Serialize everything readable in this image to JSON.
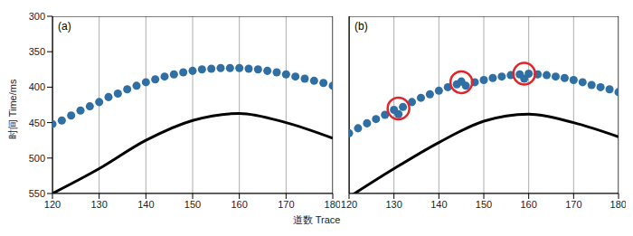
{
  "chart_data": [
    {
      "type": "scatter",
      "title": "(a)",
      "y_label": "时间 Time/ms",
      "x_label": "道数 Trace",
      "xlim": [
        120,
        180
      ],
      "xticks": [
        120,
        130,
        140,
        150,
        160,
        170,
        180
      ],
      "ylim": [
        300,
        550
      ],
      "yticks": [
        300,
        350,
        400,
        450,
        500,
        550
      ],
      "grid": true,
      "tick_labels": true,
      "picks": {
        "color": "#2f6fa3",
        "marker": "circle",
        "x": [
          120,
          122,
          124,
          126,
          128,
          130,
          132,
          134,
          136,
          138,
          140,
          142,
          144,
          146,
          148,
          150,
          152,
          154,
          156,
          158,
          160,
          162,
          164,
          166,
          168,
          170,
          172,
          174,
          176,
          178,
          180
        ],
        "values": [
          452,
          447,
          440,
          433,
          427,
          421,
          414,
          409,
          403,
          398,
          393,
          389,
          385,
          382,
          379,
          377,
          375,
          374,
          373,
          373,
          373,
          374,
          375,
          377,
          379,
          382,
          385,
          388,
          391,
          394,
          398
        ]
      },
      "event": {
        "color": "#000000",
        "line_style": "solid",
        "x": [
          120,
          130,
          140,
          150,
          160,
          170,
          180
        ],
        "values": [
          550,
          515,
          475,
          447,
          437,
          450,
          472
        ]
      }
    },
    {
      "type": "scatter",
      "title": "(b)",
      "xlim": [
        120,
        180
      ],
      "xticks": [
        120,
        130,
        140,
        150,
        160,
        170,
        180
      ],
      "ylim": [
        300,
        550
      ],
      "yticks": [
        300,
        350,
        400,
        450,
        500,
        550
      ],
      "grid": true,
      "tick_labels": "x",
      "picks": {
        "color": "#2f6fa3",
        "marker": "circle",
        "x": [
          120,
          122,
          124,
          126,
          128,
          130,
          131,
          132,
          134,
          136,
          138,
          140,
          142,
          144,
          145,
          146,
          148,
          150,
          152,
          154,
          156,
          158,
          159,
          160,
          162,
          164,
          166,
          168,
          170,
          172,
          174,
          176,
          178,
          180
        ],
        "values": [
          465,
          458,
          451,
          445,
          439,
          432,
          438,
          428,
          421,
          415,
          410,
          405,
          400,
          396,
          392,
          398,
          393,
          390,
          387,
          385,
          383,
          382,
          388,
          381,
          382,
          383,
          385,
          387,
          390,
          393,
          397,
          400,
          403,
          407
        ]
      },
      "event": {
        "color": "#000000",
        "line_style": "solid",
        "x": [
          120,
          130,
          140,
          150,
          160,
          170,
          180
        ],
        "values": [
          555,
          515,
          478,
          448,
          438,
          450,
          470
        ]
      },
      "highlights": {
        "color": "#e0262a",
        "marker": "circle",
        "x": [
          131,
          145,
          159
        ],
        "values": [
          430,
          393,
          381
        ]
      }
    }
  ]
}
